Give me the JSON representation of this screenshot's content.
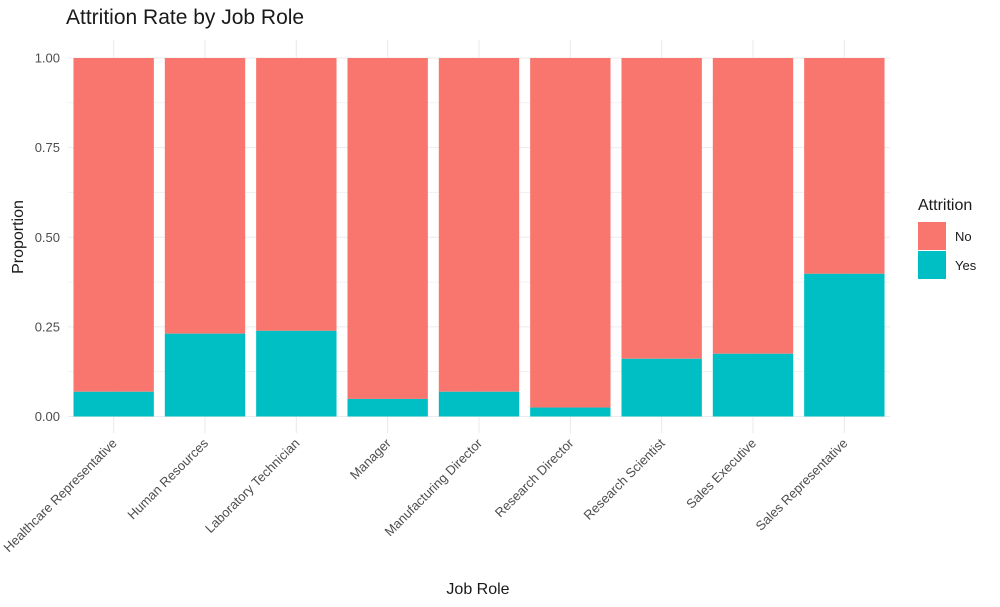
{
  "chart_data": {
    "type": "bar",
    "stacked": true,
    "title": "Attrition Rate by Job Role",
    "xlabel": "Job Role",
    "ylabel": "Proportion",
    "ylim": [
      0,
      1
    ],
    "yticks": [
      "0.00",
      "0.25",
      "0.50",
      "0.75",
      "1.00"
    ],
    "grid": true,
    "legend": {
      "title": "Attrition",
      "placement": "right"
    },
    "categories": [
      "Healthcare Representative",
      "Human Resources",
      "Laboratory Technician",
      "Manager",
      "Manufacturing Director",
      "Research Director",
      "Research Scientist",
      "Sales Executive",
      "Sales Representative"
    ],
    "series": [
      {
        "name": "No",
        "color": "#F8766D",
        "values": [
          0.931,
          0.769,
          0.761,
          0.951,
          0.931,
          0.975,
          0.839,
          0.825,
          0.602
        ]
      },
      {
        "name": "Yes",
        "color": "#00BFC4",
        "values": [
          0.069,
          0.231,
          0.239,
          0.049,
          0.069,
          0.025,
          0.161,
          0.175,
          0.398
        ]
      }
    ]
  }
}
